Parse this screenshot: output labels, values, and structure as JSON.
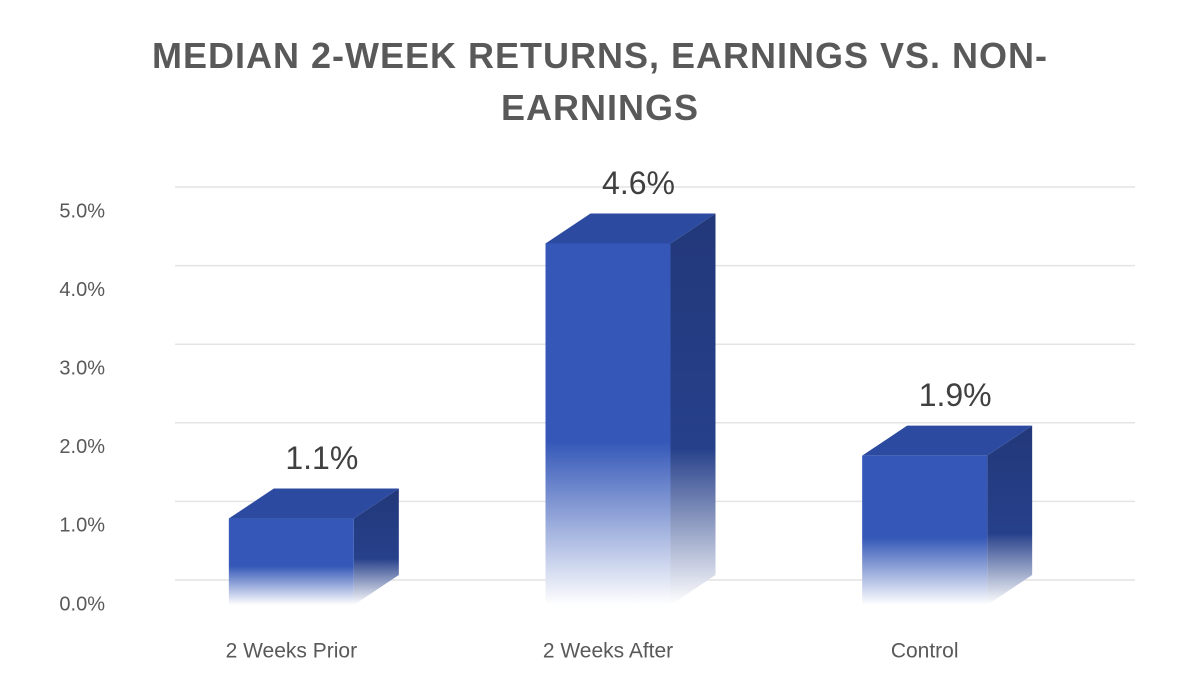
{
  "chart_data": {
    "type": "bar3d",
    "title": "MEDIAN 2-WEEK RETURNS, EARNINGS VS. NON-EARNINGS",
    "categories": [
      "2 Weeks Prior",
      "2 Weeks After",
      "Control"
    ],
    "values": [
      1.1,
      4.6,
      1.9
    ],
    "value_labels": [
      "1.1%",
      "4.6%",
      "1.9%"
    ],
    "color": "#3558b8",
    "ylim": [
      0,
      5
    ],
    "yticks": [
      {
        "value": 0,
        "label": "0.0%"
      },
      {
        "value": 1,
        "label": "1.0%"
      },
      {
        "value": 2,
        "label": "2.0%"
      },
      {
        "value": 3,
        "label": "3.0%"
      },
      {
        "value": 4,
        "label": "4.0%"
      },
      {
        "value": 5,
        "label": "5.0%"
      }
    ],
    "grid": true
  }
}
